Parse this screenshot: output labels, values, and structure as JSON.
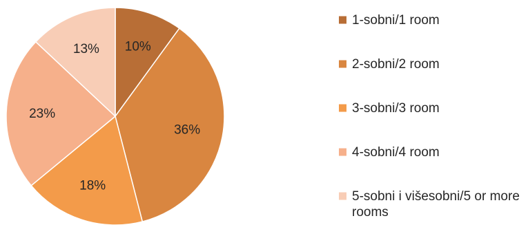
{
  "chart_data": {
    "type": "pie",
    "title": "",
    "legend_position": "right",
    "categories": [
      "1-sobni/1 room",
      "2-sobni/2 room",
      "3-sobni/3 room",
      "4-sobni/4 room",
      "5-sobni i višesobni/5 or more rooms"
    ],
    "legend_lines": [
      [
        "1-sobni/1 room"
      ],
      [
        "2-sobni/2 room"
      ],
      [
        "3-sobni/3 room"
      ],
      [
        "4-sobni/4 room"
      ],
      [
        "5-sobni i višesobni/5 or more",
        "rooms"
      ]
    ],
    "values": [
      10,
      36,
      18,
      23,
      13
    ],
    "data_labels": [
      "10%",
      "36%",
      "18%",
      "23%",
      "13%"
    ],
    "colors": [
      "#b86e36",
      "#d98640",
      "#f39b4a",
      "#f6b08b",
      "#f8cdb6"
    ]
  }
}
